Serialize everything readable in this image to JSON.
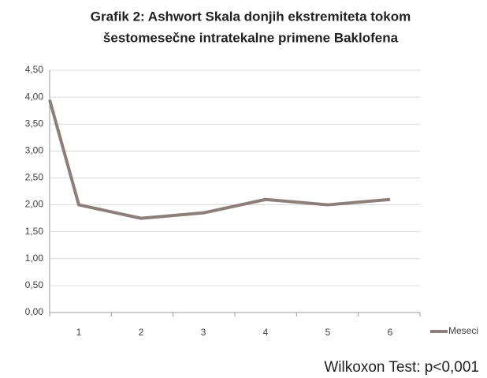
{
  "chart_data": {
    "type": "line",
    "title": [
      "Grafik 2: Ashwort Skala donjih ekstremiteta tokom",
      "šestomesečne intratekalne primene Baklofena"
    ],
    "categories": [
      null,
      "1",
      "2",
      "3",
      "4",
      "5",
      "6"
    ],
    "series": [
      {
        "name": "Meseci",
        "color": "#8c7f7a",
        "values": [
          3.95,
          2.0,
          1.75,
          1.85,
          2.1,
          2.0,
          2.1
        ]
      }
    ],
    "ylim": [
      0,
      4.5
    ],
    "yticks": [
      {
        "value": 0,
        "label": "0,00"
      },
      {
        "value": 0.5,
        "label": "0,50"
      },
      {
        "value": 1,
        "label": "1,00"
      },
      {
        "value": 1.5,
        "label": "1,50"
      },
      {
        "value": 2,
        "label": "2,00"
      },
      {
        "value": 2.5,
        "label": "2,50"
      },
      {
        "value": 3,
        "label": "3,00"
      },
      {
        "value": 3.5,
        "label": "3,50"
      },
      {
        "value": 4,
        "label": "4,00"
      },
      {
        "value": 4.5,
        "label": "4,50"
      }
    ],
    "grid": true,
    "legend": "right",
    "annotation": "Wilkoxon Test: p<0,001"
  }
}
